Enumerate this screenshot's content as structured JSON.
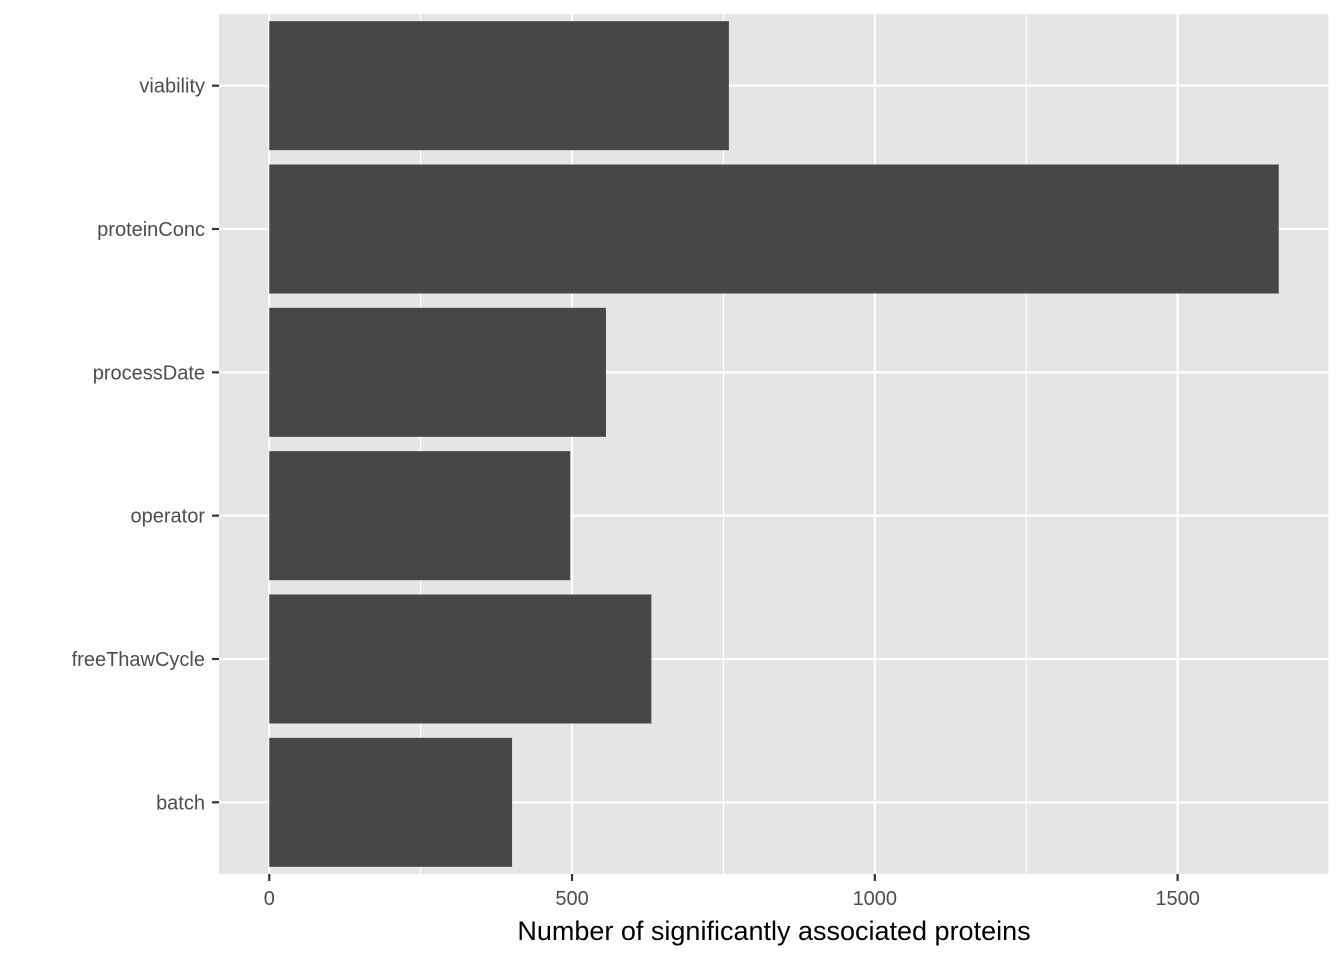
{
  "chart_data": {
    "type": "bar",
    "orientation": "horizontal",
    "categories": [
      "batch",
      "freeThawCycle",
      "operator",
      "processDate",
      "proteinConc",
      "viability"
    ],
    "values": [
      401,
      631,
      497,
      556,
      1667,
      759
    ],
    "title": "",
    "xlabel": "Number of significantly associated proteins",
    "ylabel": "",
    "xlim": [
      -83,
      1750
    ],
    "xticks": [
      0,
      500,
      1000,
      1500
    ],
    "xtick_labels": [
      "0",
      "500",
      "1000",
      "1500"
    ],
    "grid": true,
    "legend": "none",
    "colors": {
      "bar": "#474747",
      "panel": "#e5e5e5",
      "grid": "#ffffff",
      "tick": "#333333",
      "tick_label": "#4d4d4d"
    }
  }
}
